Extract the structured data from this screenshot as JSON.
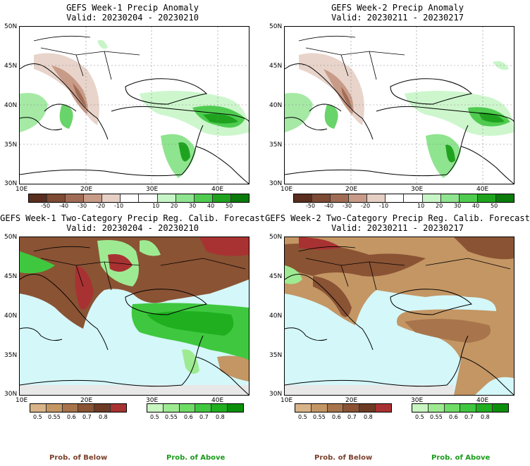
{
  "panels": [
    {
      "title": "GEFS Week-1 Precip Anomaly",
      "valid": "Valid: 20230204 - 20230210"
    },
    {
      "title": "GEFS Week-2 Precip Anomaly",
      "valid": "Valid: 20230211 - 20230217"
    },
    {
      "title": "GEFS Week-1 Two-Category Precip Reg. Calib. Forecast",
      "valid": "Valid: 20230204 - 20230210"
    },
    {
      "title": "GEFS Week-2 Two-Category Precip Reg. Calib. Forecast",
      "valid": "Valid: 20230211 - 20230217"
    }
  ],
  "axes": {
    "lat_labels": [
      "50N",
      "45N",
      "40N",
      "35N",
      "30N"
    ],
    "lon_labels": [
      "10E",
      "20E",
      "30E",
      "40E"
    ]
  },
  "anomaly_colorbar": {
    "ticks": [
      "-50",
      "-40",
      "-30",
      "-20",
      "-10",
      "10",
      "20",
      "30",
      "40",
      "50"
    ],
    "colors": [
      "#5a2e1e",
      "#7d4a34",
      "#a16c55",
      "#c89b88",
      "#e6cfc4",
      "#ffffff",
      "#ffffff",
      "#c8f5c8",
      "#8fe48f",
      "#4fcc4f",
      "#1fa31f",
      "#0a7a0a"
    ]
  },
  "prob_below_colorbar": {
    "ticks": [
      "0.5",
      "0.55",
      "0.6",
      "0.7",
      "0.8"
    ],
    "colors": [
      "#d8b488",
      "#c39664",
      "#a8744b",
      "#8a5334",
      "#6d3a24",
      "#a83232"
    ]
  },
  "prob_above_colorbar": {
    "ticks": [
      "0.5",
      "0.55",
      "0.6",
      "0.7",
      "0.8"
    ],
    "colors": [
      "#c9f5c0",
      "#9eea92",
      "#6fdc66",
      "#3fc83f",
      "#1faf1f",
      "#0b8f0b"
    ]
  },
  "footer": {
    "below_label": "Prob. of Below",
    "above_label": "Prob. of Above",
    "below_color": "#7a3f2a",
    "above_color": "#1a9a1a"
  },
  "map_colors": {
    "sea": "#d4f7f9",
    "land_brown": "#8a5334",
    "land_tan": "#c39664",
    "land_green": "#3fc83f",
    "land_lightgreen": "#9eea92",
    "land_darkred": "#a83232",
    "missing_gray": "#e8e8e8"
  }
}
